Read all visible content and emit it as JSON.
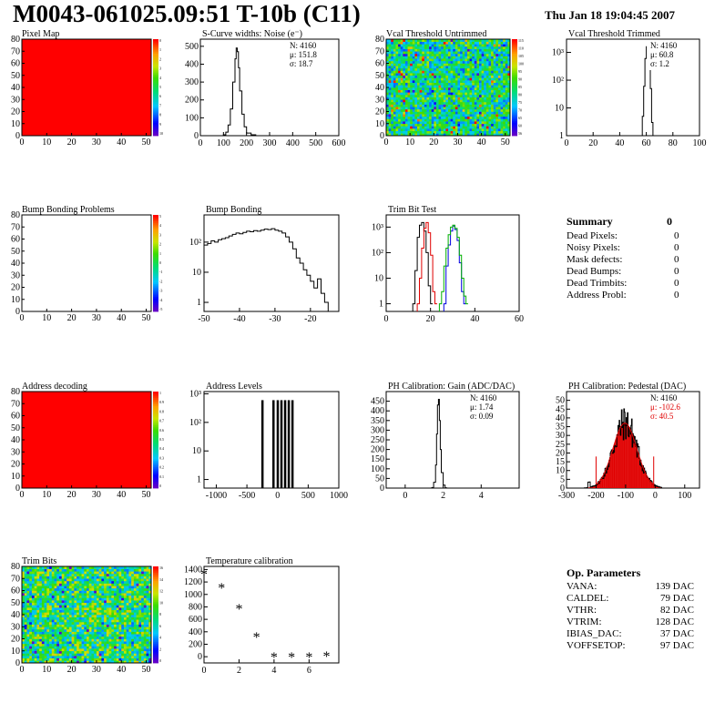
{
  "header": {
    "title": "M0043-061025.09:51 T-10b (C11)",
    "date": "Thu Jan 18 19:04:45 2007"
  },
  "summary": {
    "title": "Summary",
    "total": "0",
    "items": [
      {
        "label": "Dead Pixels:",
        "value": "0"
      },
      {
        "label": "Noisy Pixels:",
        "value": "0"
      },
      {
        "label": "Mask defects:",
        "value": "0"
      },
      {
        "label": "Dead Bumps:",
        "value": "0"
      },
      {
        "label": "Dead Trimbits:",
        "value": "0"
      },
      {
        "label": "Address Probl:",
        "value": "0"
      }
    ]
  },
  "op_parameters": {
    "title": "Op. Parameters",
    "items": [
      {
        "label": "VANA:",
        "value": "139 DAC"
      },
      {
        "label": "CALDEL:",
        "value": "79 DAC"
      },
      {
        "label": "VTHR:",
        "value": "82 DAC"
      },
      {
        "label": "VTRIM:",
        "value": "128 DAC"
      },
      {
        "label": "IBIAS_DAC:",
        "value": "37 DAC"
      },
      {
        "label": "VOFFSETOP:",
        "value": "97 DAC"
      }
    ]
  },
  "chart_data": [
    {
      "id": "pixel_map",
      "type": "heatmap",
      "title": "Pixel Map",
      "xlim": [
        0,
        52
      ],
      "ylim": [
        0,
        80
      ],
      "xticks": [
        0,
        10,
        20,
        30,
        40,
        50
      ],
      "yticks": [
        0,
        10,
        20,
        30,
        40,
        50,
        60,
        70,
        80
      ],
      "fill": "uniform",
      "color": "#ff0000",
      "colorbar": {
        "ticks": [
          "0",
          "1",
          "2",
          "3",
          "4",
          "5",
          "6",
          "7",
          "8",
          "9",
          "10"
        ]
      }
    },
    {
      "id": "scurve_noise",
      "type": "histogram",
      "title": "S-Curve widths: Noise (e⁻)",
      "xlim": [
        0,
        600
      ],
      "ylim": [
        0,
        540
      ],
      "xticks": [
        0,
        100,
        200,
        300,
        400,
        500,
        600
      ],
      "yticks": [
        0,
        100,
        200,
        300,
        400,
        500
      ],
      "x": [
        100,
        110,
        120,
        130,
        140,
        150,
        155,
        160,
        165,
        170,
        180,
        190,
        200,
        220,
        240
      ],
      "values": [
        5,
        20,
        60,
        150,
        300,
        430,
        490,
        470,
        380,
        250,
        120,
        50,
        15,
        5,
        0
      ],
      "stats": {
        "N": "N: 4160",
        "mu": "μ:  151.8",
        "sigma": "σ:  18.7"
      }
    },
    {
      "id": "vcal_untrimmed",
      "type": "heatmap",
      "title": "Vcal Threshold Untrimmed",
      "xlim": [
        0,
        52
      ],
      "ylim": [
        0,
        80
      ],
      "xticks": [
        0,
        10,
        20,
        30,
        40,
        50
      ],
      "yticks": [
        0,
        10,
        20,
        30,
        40,
        50,
        60,
        70,
        80
      ],
      "fill": "noise",
      "colorbar": {
        "ticks": [
          "115",
          "110",
          "105",
          "100",
          "95",
          "90",
          "85",
          "80",
          "75",
          "70",
          "65",
          "60",
          "56"
        ]
      }
    },
    {
      "id": "vcal_trimmed",
      "type": "histogram",
      "title": "Vcal Threshold Trimmed",
      "xlim": [
        0,
        100
      ],
      "ylim_log": [
        1,
        3000
      ],
      "log_y": true,
      "xticks": [
        0,
        20,
        40,
        60,
        80,
        100
      ],
      "yticks_log": [
        "1",
        "10",
        "10²",
        "10³"
      ],
      "x": [
        55,
        57,
        58,
        59,
        60,
        61,
        62,
        63,
        64,
        65
      ],
      "values": [
        1,
        5,
        60,
        600,
        1600,
        1500,
        500,
        50,
        3,
        1
      ],
      "stats": {
        "N": "N: 4160",
        "mu": "μ:  60.8",
        "sigma": "σ:   1.2"
      }
    },
    {
      "id": "bump_problems",
      "type": "heatmap",
      "title": "Bump Bonding Problems",
      "xlim": [
        0,
        52
      ],
      "ylim": [
        0,
        80
      ],
      "xticks": [
        0,
        10,
        20,
        30,
        40,
        50
      ],
      "yticks": [
        0,
        10,
        20,
        30,
        40,
        50,
        60,
        70,
        80
      ],
      "fill": "empty",
      "colorbar": {
        "ticks": [
          "5",
          "4",
          "3",
          "2",
          "1",
          "0",
          "-1",
          "-2",
          "-3",
          "-4",
          "-5"
        ]
      }
    },
    {
      "id": "bump_bonding",
      "type": "histogram",
      "title": "Bump Bonding",
      "xlim": [
        -50,
        -12
      ],
      "ylim_log": [
        0.5,
        800
      ],
      "log_y": true,
      "xticks": [
        -50,
        -40,
        -30,
        -20
      ],
      "yticks_log": [
        "1",
        "10",
        "10²"
      ],
      "x": [
        -50,
        -49,
        -48,
        -47,
        -46,
        -45,
        -44,
        -43,
        -42,
        -41,
        -40,
        -39,
        -38,
        -37,
        -36,
        -35,
        -34,
        -33,
        -32,
        -31,
        -30,
        -29,
        -28,
        -27,
        -26,
        -25,
        -24,
        -23,
        -22,
        -21,
        -20,
        -19,
        -18,
        -17,
        -16,
        -15
      ],
      "values": [
        80,
        90,
        110,
        100,
        120,
        130,
        140,
        160,
        180,
        200,
        190,
        210,
        230,
        220,
        240,
        230,
        250,
        270,
        260,
        280,
        250,
        230,
        200,
        150,
        100,
        60,
        30,
        20,
        12,
        8,
        5,
        3,
        6,
        2,
        1,
        0.5
      ]
    },
    {
      "id": "trim_bit_test",
      "type": "histogram",
      "title": "Trim Bit Test",
      "xlim": [
        0,
        60
      ],
      "ylim_log": [
        0.5,
        3000
      ],
      "log_y": true,
      "xticks": [
        0,
        20,
        40,
        60
      ],
      "yticks_log": [
        "1",
        "10",
        "10²",
        "10³"
      ],
      "series": [
        {
          "name": "black",
          "color": "#000000",
          "x": [
            12,
            13,
            14,
            15,
            16,
            17,
            18,
            19,
            20
          ],
          "values": [
            1,
            20,
            400,
            1200,
            1500,
            700,
            100,
            5,
            1
          ]
        },
        {
          "name": "red",
          "color": "#e00000",
          "x": [
            14,
            15,
            16,
            17,
            18,
            19,
            20,
            21,
            22
          ],
          "values": [
            1,
            10,
            150,
            900,
            1500,
            600,
            80,
            3,
            1
          ]
        },
        {
          "name": "blue",
          "color": "#0000e0",
          "x": [
            26,
            27,
            28,
            29,
            30,
            31,
            32,
            33,
            34,
            35
          ],
          "values": [
            1,
            30,
            200,
            700,
            1100,
            800,
            300,
            40,
            3,
            1
          ]
        },
        {
          "name": "green",
          "color": "#00b000",
          "x": [
            24,
            25,
            26,
            27,
            28,
            29,
            30,
            31,
            32,
            33,
            34,
            35,
            36
          ],
          "values": [
            1,
            3,
            30,
            150,
            500,
            1000,
            1200,
            900,
            400,
            80,
            10,
            2,
            1
          ]
        }
      ]
    },
    {
      "id": "address_decoding",
      "type": "heatmap",
      "title": "Address decoding",
      "xlim": [
        0,
        52
      ],
      "ylim": [
        0,
        80
      ],
      "xticks": [
        0,
        10,
        20,
        30,
        40,
        50
      ],
      "yticks": [
        0,
        10,
        20,
        30,
        40,
        50,
        60,
        70,
        80
      ],
      "fill": "uniform",
      "color": "#ff0000",
      "colorbar": {
        "ticks": [
          "1",
          "0.9",
          "0.8",
          "0.7",
          "0.6",
          "0.5",
          "0.4",
          "0.3",
          "0.2",
          "0.1",
          "0"
        ]
      }
    },
    {
      "id": "address_levels",
      "type": "histogram",
      "title": "Address Levels",
      "xlim": [
        -1200,
        1000
      ],
      "ylim_log": [
        0.5,
        1200
      ],
      "log_y": true,
      "xticks": [
        -1000,
        -500,
        0,
        500,
        1000
      ],
      "yticks_log": [
        "1",
        "10",
        "10²",
        "10³"
      ],
      "spikes": [
        -250,
        -70,
        0,
        60,
        120,
        180,
        240
      ],
      "values": [
        600,
        600,
        600,
        600,
        600,
        600,
        600
      ]
    },
    {
      "id": "ph_gain",
      "type": "histogram",
      "title": "PH Calibration: Gain (ADC/DAC)",
      "xlim": [
        -1,
        6
      ],
      "ylim": [
        0,
        500
      ],
      "xticks": [
        0,
        2,
        4
      ],
      "yticks": [
        0,
        50,
        100,
        150,
        200,
        250,
        300,
        350,
        400,
        450
      ],
      "x": [
        1.4,
        1.5,
        1.6,
        1.65,
        1.7,
        1.75,
        1.8,
        1.85,
        1.9,
        2.0,
        2.1
      ],
      "values": [
        3,
        30,
        120,
        280,
        430,
        460,
        350,
        200,
        80,
        15,
        2
      ],
      "stats": {
        "N": "N: 4160",
        "mu": "μ:  1.74",
        "sigma": "σ:  0.09"
      }
    },
    {
      "id": "ph_pedestal",
      "type": "histogram",
      "title": "PH Calibration: Pedestal (DAC)",
      "xlim": [
        -300,
        150
      ],
      "ylim": [
        0,
        55
      ],
      "xticks": [
        -300,
        -200,
        -100,
        0,
        100
      ],
      "yticks": [
        0,
        5,
        10,
        15,
        20,
        25,
        30,
        35,
        40,
        45,
        50
      ],
      "fit": {
        "mean": -102.6,
        "sigma": 40.5,
        "amp": 37,
        "range": [
          -200,
          -5
        ],
        "color": "#e00000"
      },
      "stats": {
        "N": "N: 4160",
        "mu": "μ:  -102.6",
        "sigma": "σ:  40.5"
      }
    },
    {
      "id": "trim_bits",
      "type": "heatmap",
      "title": "Trim Bits",
      "xlim": [
        0,
        52
      ],
      "ylim": [
        0,
        80
      ],
      "xticks": [
        0,
        10,
        20,
        30,
        40,
        50
      ],
      "yticks": [
        0,
        10,
        20,
        30,
        40,
        50,
        60,
        70,
        80
      ],
      "fill": "noise2",
      "colorbar": {
        "ticks": [
          "16",
          "14",
          "12",
          "10",
          "8",
          "6",
          "4",
          "2",
          "0"
        ]
      }
    },
    {
      "id": "temperature",
      "type": "scatter",
      "title": "Temperature calibration",
      "xlim": [
        0,
        7.7
      ],
      "ylim": [
        -100,
        1450
      ],
      "xticks": [
        0,
        2,
        4,
        6
      ],
      "yticks": [
        0,
        200,
        400,
        600,
        800,
        1000,
        1200,
        1400
      ],
      "x": [
        0,
        1,
        2,
        3,
        4,
        5,
        6,
        7
      ],
      "values": [
        1320,
        1100,
        760,
        310,
        -10,
        -10,
        -10,
        0
      ]
    }
  ]
}
